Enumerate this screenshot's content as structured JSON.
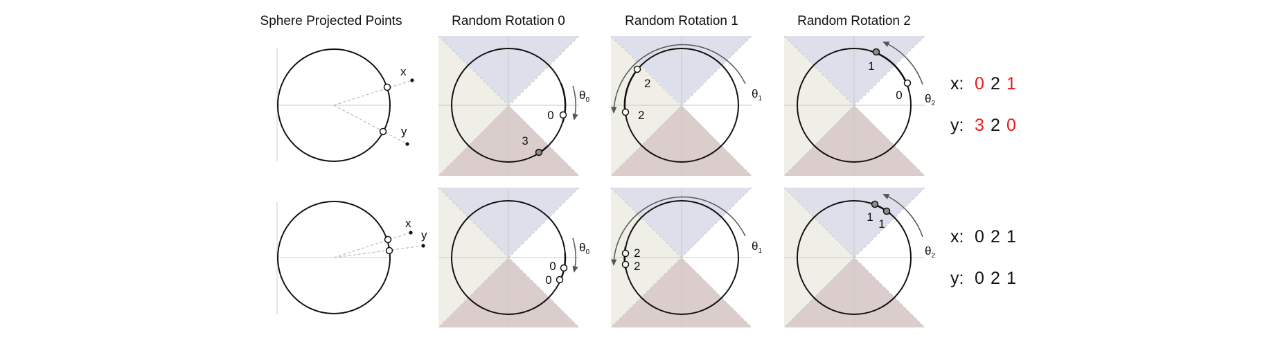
{
  "column_titles": [
    "Sphere Projected Points",
    "Random Rotation 0",
    "Random Rotation 1",
    "Random Rotation 2"
  ],
  "colors": {
    "region_top": "#dde0ea",
    "region_left": "#efefe7",
    "region_bottom": "#dccdcd",
    "highlight": "#e8191b",
    "point_open": "#ffffff",
    "point_filled": "#8c8c8c",
    "arrow": "#555555"
  },
  "theta_labels": [
    "θ",
    "θ",
    "θ"
  ],
  "theta_subscripts": [
    "0",
    "1",
    "2"
  ],
  "rows": [
    {
      "projection_labels": [
        "x",
        "y"
      ],
      "rotations": [
        {
          "labels": [
            "0",
            "3"
          ]
        },
        {
          "labels": [
            "2",
            "2"
          ]
        },
        {
          "labels": [
            "1",
            "0"
          ]
        }
      ],
      "codes": [
        {
          "label": "x:",
          "digits": [
            "0",
            "2",
            "1"
          ],
          "highlight": [
            true,
            false,
            true
          ]
        },
        {
          "label": "y:",
          "digits": [
            "3",
            "2",
            "0"
          ],
          "highlight": [
            true,
            false,
            true
          ]
        }
      ]
    },
    {
      "projection_labels": [
        "x",
        "y"
      ],
      "rotations": [
        {
          "labels": [
            "0",
            "0"
          ]
        },
        {
          "labels": [
            "2",
            "2"
          ]
        },
        {
          "labels": [
            "1",
            "1"
          ]
        }
      ],
      "codes": [
        {
          "label": "x:",
          "digits": [
            "0",
            "2",
            "1"
          ],
          "highlight": [
            false,
            false,
            false
          ]
        },
        {
          "label": "y:",
          "digits": [
            "0",
            "2",
            "1"
          ],
          "highlight": [
            false,
            false,
            false
          ]
        }
      ]
    }
  ]
}
